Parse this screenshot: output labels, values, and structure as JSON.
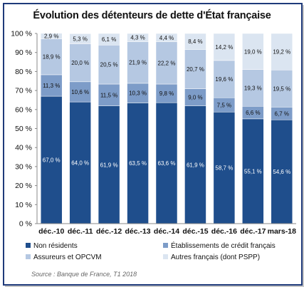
{
  "chart_data": {
    "type": "bar",
    "stacked": true,
    "title": "Évolution des détenteurs de dette d'État française",
    "categories": [
      "déc.-10",
      "déc.-11",
      "déc.-12",
      "déc.-13",
      "déc.-14",
      "déc.-15",
      "déc.-16",
      "déc.-17",
      "mars-18"
    ],
    "ylim": [
      0,
      100
    ],
    "yticks": [
      "0 %",
      "10 %",
      "20 %",
      "30 %",
      "40 %",
      "50 %",
      "60 %",
      "70 %",
      "80 %",
      "90 %",
      "100 %"
    ],
    "grid": false,
    "legend_position": "bottom",
    "series": [
      {
        "name": "Non résidents",
        "color": "#1f4e8c",
        "label_color": "#ffffff",
        "values": [
          67.0,
          64.0,
          61.9,
          63.5,
          63.6,
          61.9,
          58.7,
          55.1,
          54.6
        ],
        "labels": [
          "67,0 %",
          "64,0 %",
          "61,9 %",
          "63,5 %",
          "63,6 %",
          "61,9 %",
          "58,7 %",
          "55,1 %",
          "54,6 %"
        ]
      },
      {
        "name": "Établissements de crédit français",
        "color": "#7d9cc8",
        "label_color": "#111111",
        "values": [
          11.3,
          10.6,
          11.5,
          10.3,
          9.8,
          9.0,
          7.5,
          6.6,
          6.7
        ],
        "labels": [
          "11,3 %",
          "10,6 %",
          "11,5 %",
          "10,3 %",
          "9,8 %",
          "9,0 %",
          "7,5 %",
          "6,6 %",
          "6,7 %"
        ]
      },
      {
        "name": "Assureurs et OPCVM",
        "color": "#b5c8e2",
        "label_color": "#111111",
        "values": [
          18.9,
          20.0,
          20.5,
          21.9,
          22.2,
          20.7,
          19.6,
          19.3,
          19.5
        ],
        "labels": [
          "18,9 %",
          "20,0 %",
          "20,5 %",
          "21,9 %",
          "22,2 %",
          "20,7 %",
          "19,6 %",
          "19,3 %",
          "19,5 %"
        ]
      },
      {
        "name": "Autres français (dont PSPP)",
        "color": "#dbe5f1",
        "label_color": "#111111",
        "values": [
          2.9,
          5.3,
          6.1,
          4.3,
          4.4,
          8.4,
          14.2,
          19.0,
          19.2
        ],
        "labels": [
          "2,9 %",
          "5,3 %",
          "6,1 %",
          "4,3 %",
          "4,4 %",
          "8,4 %",
          "14,2 %",
          "19,0 %",
          "19,2 %"
        ]
      }
    ],
    "source": "Source : Banque de France, T1 2018"
  }
}
